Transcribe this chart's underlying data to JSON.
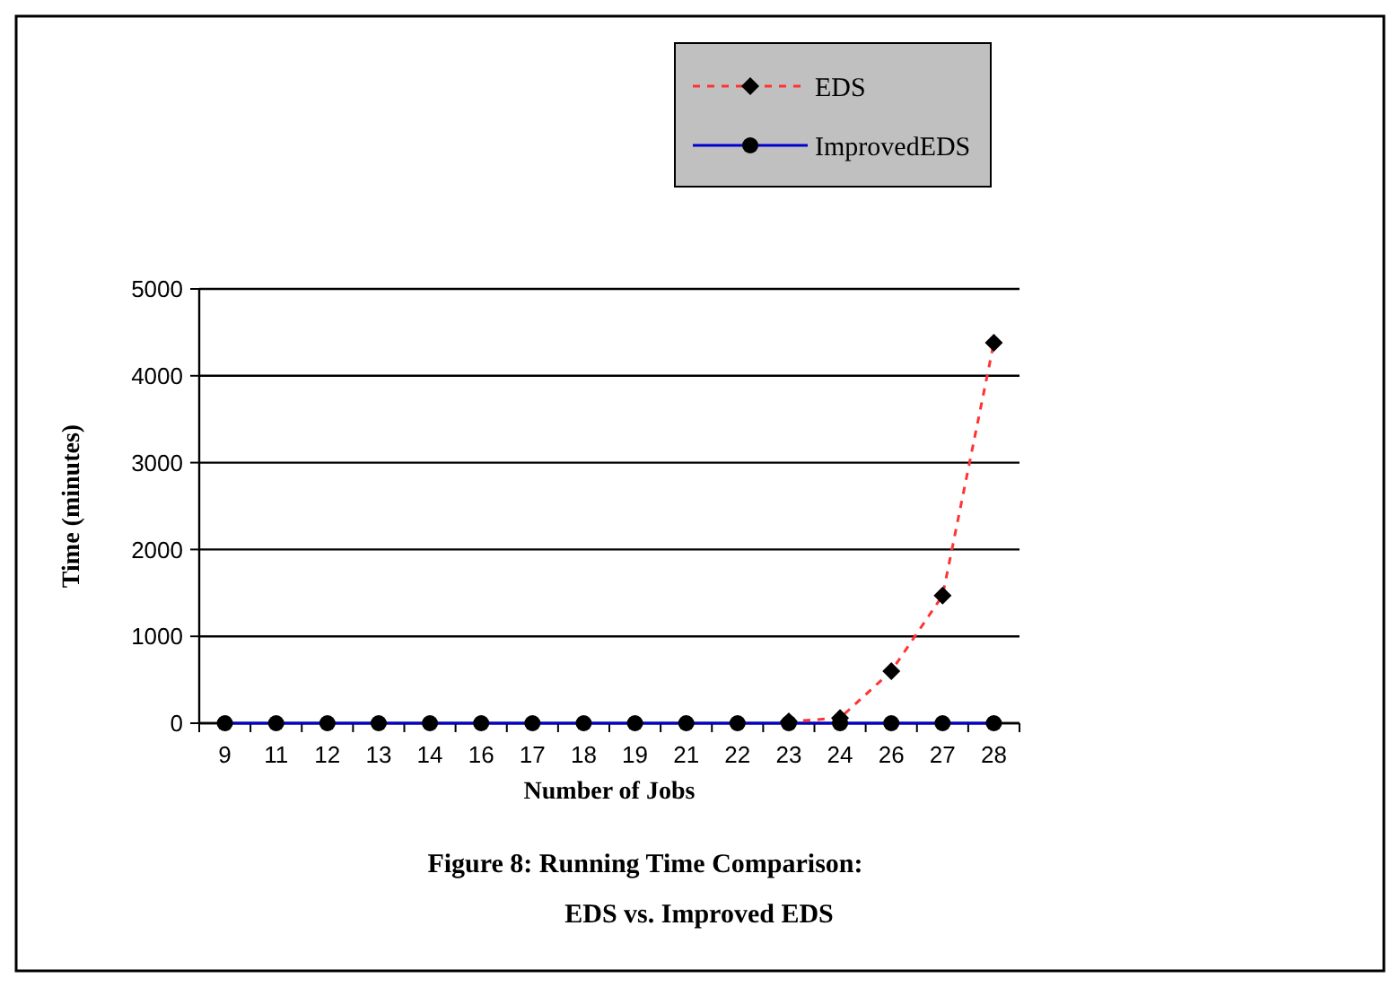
{
  "chart_data": {
    "type": "line",
    "title": "Figure 8:  Running Time Comparison:",
    "subtitle": "EDS vs. Improved EDS",
    "xlabel": "Number of Jobs",
    "ylabel": "Time (minutes)",
    "categories": [
      "9",
      "11",
      "12",
      "13",
      "14",
      "16",
      "17",
      "18",
      "19",
      "21",
      "22",
      "23",
      "24",
      "26",
      "27",
      "28"
    ],
    "series": [
      {
        "name": "EDS",
        "color": "#ff3333",
        "line_style": "dashed",
        "marker": "diamond",
        "values": [
          null,
          null,
          null,
          null,
          null,
          null,
          null,
          null,
          null,
          null,
          null,
          20,
          60,
          600,
          1470,
          4380
        ]
      },
      {
        "name": "ImprovedEDS",
        "color": "#0000cc",
        "line_style": "solid",
        "marker": "circle",
        "values": [
          0,
          0,
          0,
          0,
          0,
          0,
          0,
          0,
          0,
          0,
          0,
          0,
          0,
          0,
          0,
          0
        ]
      }
    ],
    "ylim": [
      0,
      5000
    ],
    "yticks": [
      0,
      1000,
      2000,
      3000,
      4000,
      5000
    ],
    "grid": "y",
    "legend": "top right"
  }
}
